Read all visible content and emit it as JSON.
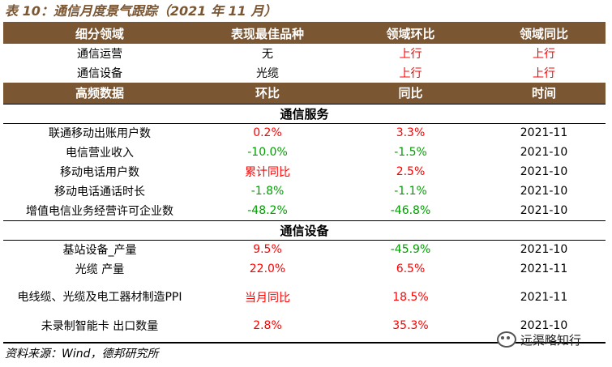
{
  "title": "表 10：通信月度景气跟踪（2021 年 11 月）",
  "colors": {
    "header_bg": "#7a5632",
    "up": "#ff0000",
    "down": "#00a000",
    "neutral": "#000000"
  },
  "summary": {
    "headers": [
      "细分领域",
      "表现最佳品种",
      "领域环比",
      "领域同比"
    ],
    "rows": [
      [
        "通信运营",
        "无",
        "上行",
        "上行"
      ],
      [
        "通信设备",
        "光缆",
        "上行",
        "上行"
      ]
    ]
  },
  "detail_headers": [
    "高频数据",
    "环比",
    "同比",
    "时间"
  ],
  "sections": [
    {
      "name": "通信服务",
      "rows": [
        {
          "item": "联通移动出账用户数",
          "mom": "0.2%",
          "mom_color": "red",
          "yoy": "3.3%",
          "yoy_color": "red",
          "date": "2021-11"
        },
        {
          "item": "电信营业收入",
          "mom": "-10.0%",
          "mom_color": "green",
          "yoy": "-1.5%",
          "yoy_color": "green",
          "date": "2021-10"
        },
        {
          "item": "移动电话用户数",
          "mom": "累计同比",
          "mom_color": "red",
          "yoy": "2.5%",
          "yoy_color": "red",
          "date": "2021-10"
        },
        {
          "item": "移动电话通话时长",
          "mom": "-1.8%",
          "mom_color": "green",
          "yoy": "-1.1%",
          "yoy_color": "green",
          "date": "2021-10"
        },
        {
          "item": "增值电信业务经营许可企业数",
          "mom": "-48.2%",
          "mom_color": "green",
          "yoy": "-46.8%",
          "yoy_color": "green",
          "date": "2021-10"
        }
      ]
    },
    {
      "name": "通信设备",
      "rows": [
        {
          "item": "基站设备_产量",
          "mom": "9.5%",
          "mom_color": "red",
          "yoy": "-45.9%",
          "yoy_color": "green",
          "date": "2021-10"
        },
        {
          "item": "光缆 产量",
          "mom": "22.0%",
          "mom_color": "red",
          "yoy": "6.5%",
          "yoy_color": "red",
          "date": "2021-11"
        },
        {
          "item": "电线缆、光缆及电工器材制造PPI",
          "mom": "当月同比",
          "mom_color": "red",
          "yoy": "18.5%",
          "yoy_color": "red",
          "date": "2021-11"
        },
        {
          "item": "未录制智能卡 出口数量",
          "mom": "2.8%",
          "mom_color": "red",
          "yoy": "35.3%",
          "yoy_color": "red",
          "date": "2021-10"
        }
      ]
    }
  ],
  "source": "资料来源：Wind，德邦研究所",
  "watermark": {
    "icon": "wechat-icon",
    "text": "远渠略知行"
  }
}
